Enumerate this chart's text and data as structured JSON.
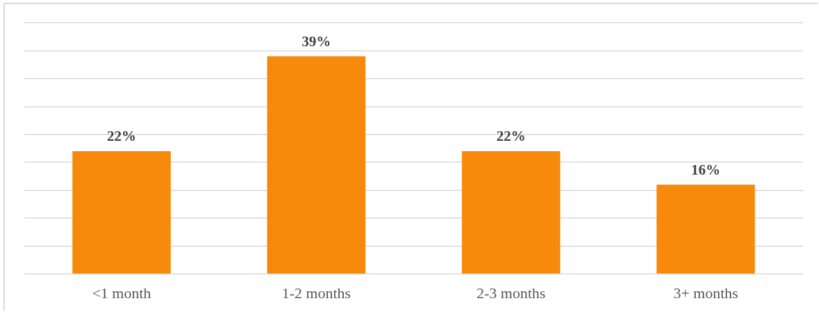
{
  "chart_data": {
    "type": "bar",
    "categories": [
      "<1 month",
      "1-2 months",
      "2-3 months",
      "3+ months"
    ],
    "values": [
      22,
      39,
      22,
      16
    ],
    "color": "#f7890b",
    "value_labels": [
      "22%",
      "39%",
      "22%",
      "16%"
    ],
    "ylim": [
      0,
      45
    ],
    "yticks": [
      0,
      {
        "value": 5,
        "label": null
      },
      {
        "value": 10,
        "label": null
      },
      {
        "value": 15,
        "label": null
      },
      {
        "value": 20,
        "label": null
      },
      {
        "value": 25,
        "label": null
      },
      {
        "value": 30,
        "label": null
      },
      {
        "value": 35,
        "label": null
      },
      {
        "value": 40,
        "label": null
      },
      {
        "value": 45,
        "label": null
      }
    ],
    "grid": "y",
    "tick_labels": "x"
  }
}
